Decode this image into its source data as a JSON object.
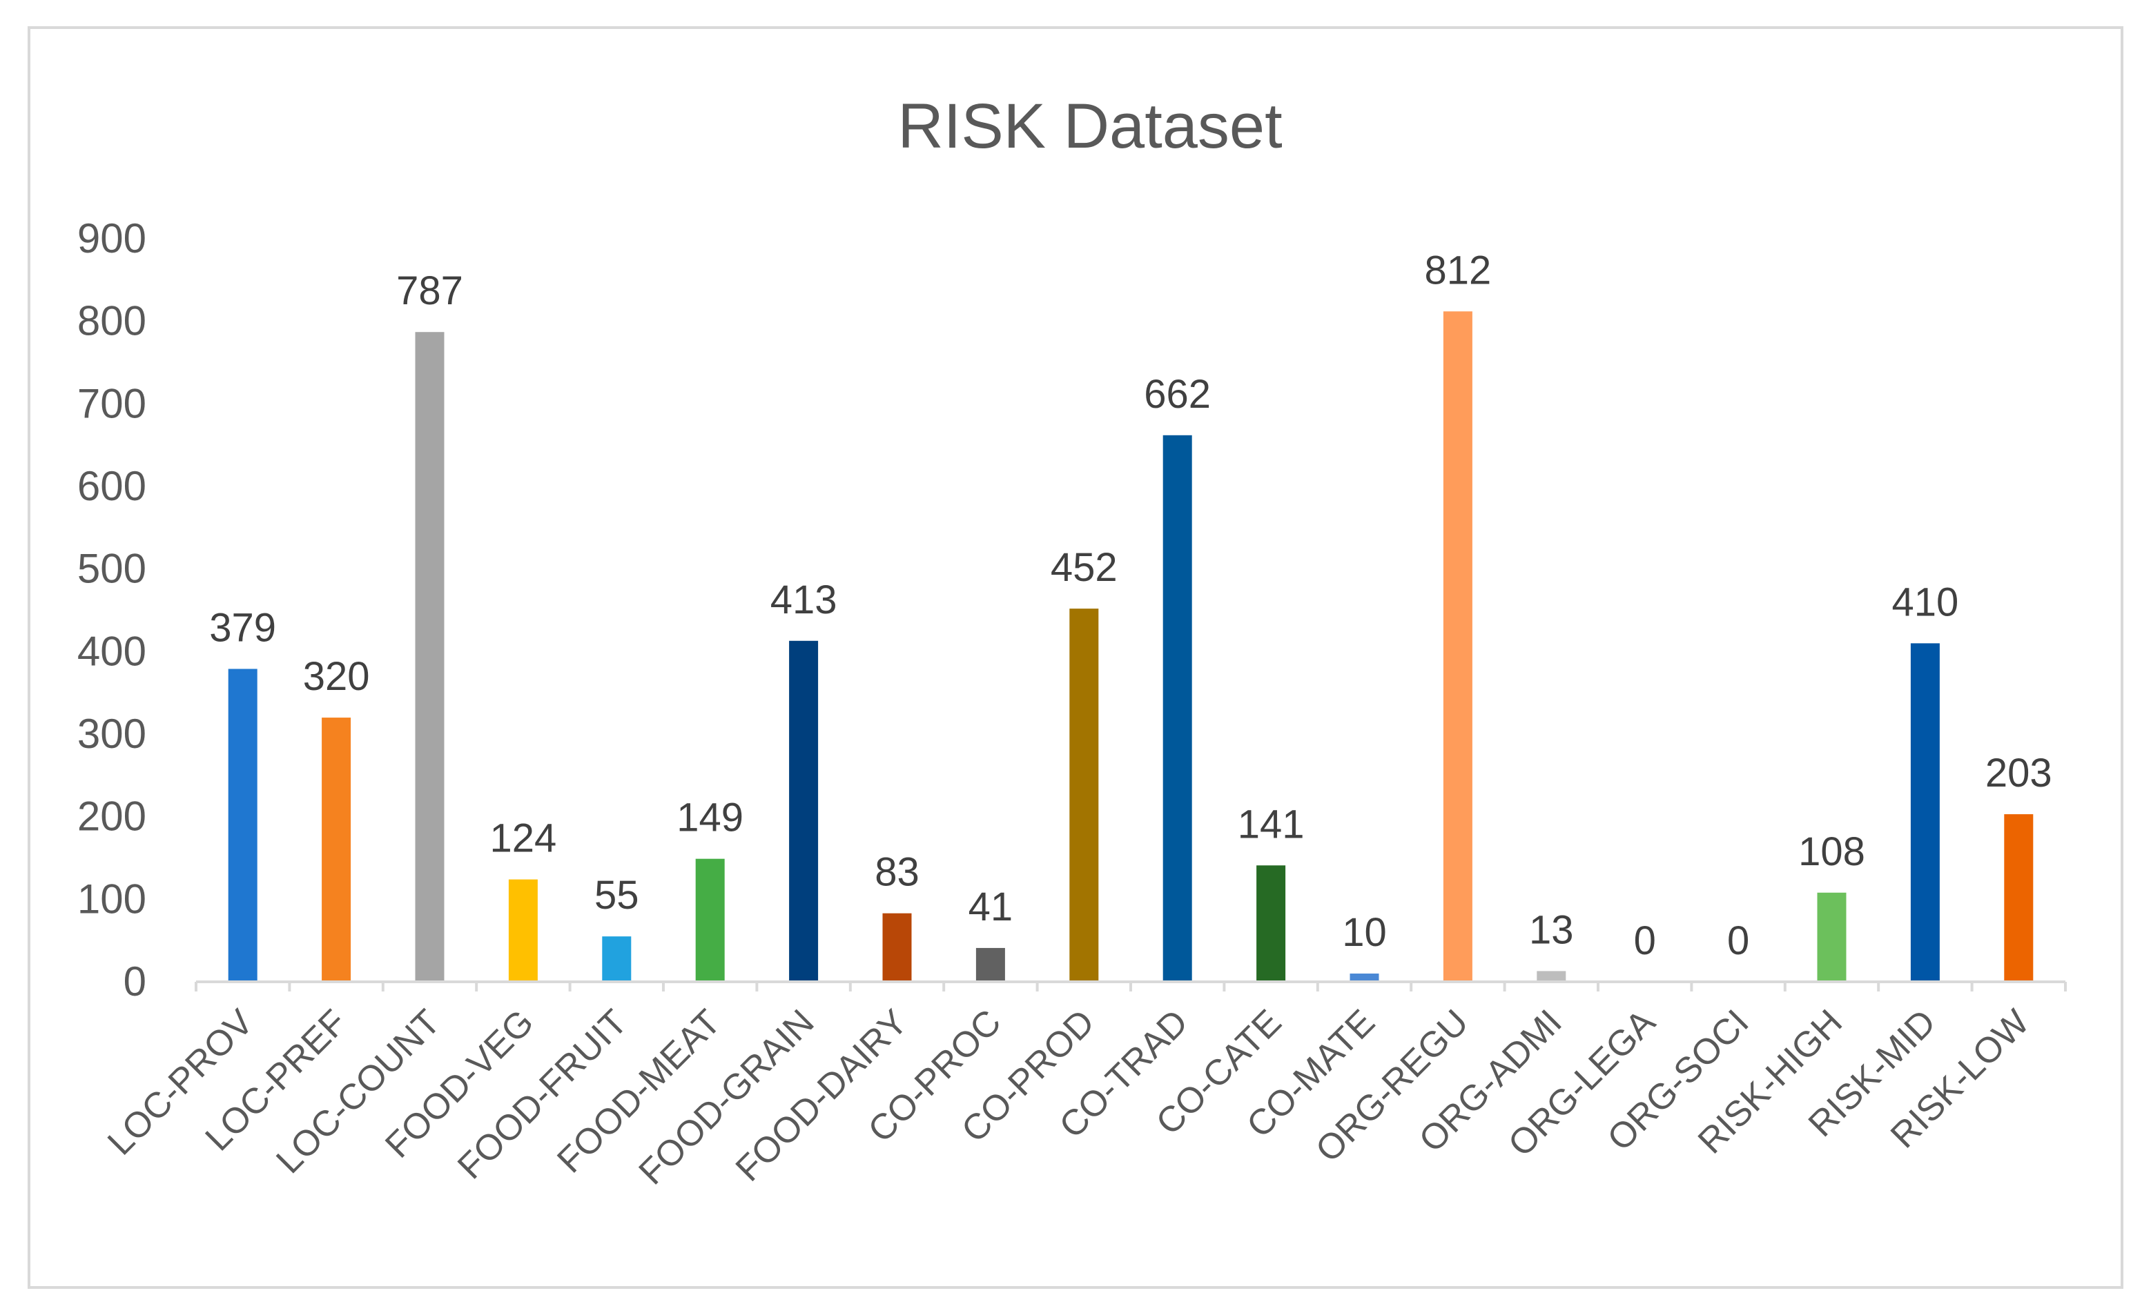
{
  "chart_data": {
    "type": "bar",
    "title": "RISK Dataset",
    "xlabel": "",
    "ylabel": "",
    "ylim": [
      0,
      900
    ],
    "yticks": [
      0,
      100,
      200,
      300,
      400,
      500,
      600,
      700,
      800,
      900
    ],
    "grid": false,
    "legend": "none",
    "categories": [
      "LOC-PROV",
      "LOC-PREF",
      "LOC-COUNT",
      "FOOD-VEG",
      "FOOD-FRUIT",
      "FOOD-MEAT",
      "FOOD-GRAIN",
      "FOOD-DAIRY",
      "CO-PROC",
      "CO-PROD",
      "CO-TRAD",
      "CO-CATE",
      "CO-MATE",
      "ORG-REGU",
      "ORG-ADMI",
      "ORG-LEGA",
      "ORG-SOCI",
      "RISK-HIGH",
      "RISK-MID",
      "RISK-LOW"
    ],
    "values": [
      379,
      320,
      787,
      124,
      55,
      149,
      413,
      83,
      41,
      452,
      662,
      141,
      10,
      812,
      13,
      0,
      0,
      108,
      410,
      203
    ],
    "colors": [
      "#1f77d0",
      "#f5821f",
      "#a5a5a5",
      "#ffc000",
      "#21a2df",
      "#45ad45",
      "#003f7d",
      "#b84707",
      "#616161",
      "#a27400",
      "#00589a",
      "#266a24",
      "#4a88d5",
      "#ff9c5a",
      "#bdbdbd",
      "#a8a8a8",
      "#a8a8a8",
      "#6cc05c",
      "#0056a6",
      "#ec6400"
    ]
  }
}
